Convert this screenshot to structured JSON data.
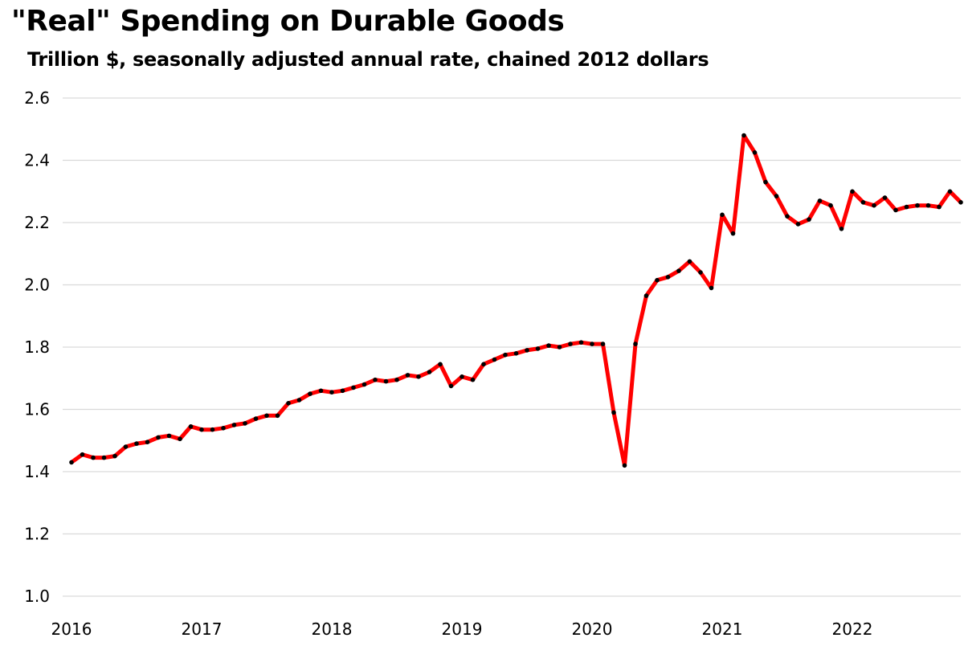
{
  "chart_data": {
    "type": "line",
    "title": "\"Real\" Spending on Durable Goods",
    "subtitle": "Trillion $, seasonally adjusted annual rate, chained 2012 dollars",
    "xlabel": "",
    "ylabel": "",
    "ylim": [
      1.0,
      2.6
    ],
    "yticks": [
      "1.0",
      "1.2",
      "1.4",
      "1.6",
      "1.8",
      "2.0",
      "2.2",
      "2.4",
      "2.6"
    ],
    "xticks": [
      "2016",
      "2017",
      "2018",
      "2019",
      "2020",
      "2021",
      "2022"
    ],
    "x_start": "2016-01",
    "frequency": "monthly",
    "grid": true,
    "legend": "none",
    "series": [
      {
        "name": "Real spending on durable goods",
        "color": "#ff0000",
        "values": [
          1.43,
          1.455,
          1.445,
          1.445,
          1.45,
          1.48,
          1.49,
          1.495,
          1.51,
          1.515,
          1.505,
          1.545,
          1.535,
          1.535,
          1.54,
          1.55,
          1.555,
          1.57,
          1.58,
          1.58,
          1.62,
          1.63,
          1.65,
          1.66,
          1.655,
          1.66,
          1.67,
          1.68,
          1.695,
          1.69,
          1.695,
          1.71,
          1.705,
          1.72,
          1.745,
          1.675,
          1.705,
          1.695,
          1.745,
          1.76,
          1.775,
          1.78,
          1.79,
          1.795,
          1.805,
          1.8,
          1.81,
          1.815,
          1.81,
          1.81,
          1.59,
          1.42,
          1.81,
          1.965,
          2.015,
          2.025,
          2.045,
          2.075,
          2.04,
          1.99,
          2.225,
          2.165,
          2.48,
          2.425,
          2.33,
          2.285,
          2.22,
          2.195,
          2.21,
          2.27,
          2.255,
          2.18,
          2.3,
          2.265,
          2.255,
          2.28,
          2.24,
          2.25,
          2.255,
          2.255,
          2.25,
          2.3,
          2.265
        ]
      }
    ]
  }
}
